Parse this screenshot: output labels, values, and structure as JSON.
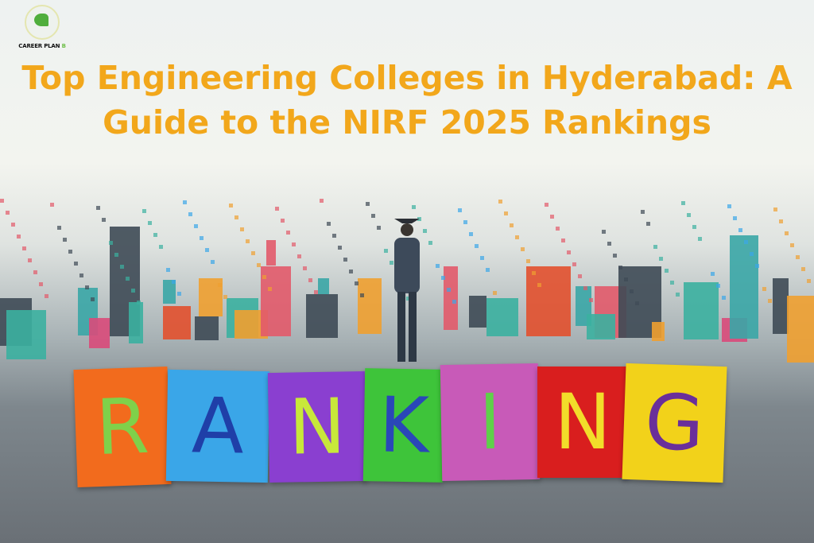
{
  "logo": {
    "brand": "CAREER PLAN",
    "brand_suffix": "B"
  },
  "title": {
    "line1": "Top Engineering Colleges in Hyderabad: A",
    "line2": "Guide to the NIRF 2025 Rankings"
  },
  "colors": {
    "title": "#f2a71b",
    "logo_green": "#4fae3c"
  },
  "tiles": [
    {
      "letter": "R",
      "bg": "#f26b1d",
      "fg": "#7fd14a"
    },
    {
      "letter": "A",
      "bg": "#3aa6e8",
      "fg": "#1f3fa8"
    },
    {
      "letter": "N",
      "bg": "#8a3fd0",
      "fg": "#c8e83a"
    },
    {
      "letter": "K",
      "bg": "#3ec43a",
      "fg": "#2a47b8"
    },
    {
      "letter": "I",
      "bg": "#c85ab8",
      "fg": "#5fd04a"
    },
    {
      "letter": "N",
      "bg": "#d91e1e",
      "fg": "#f2dd2a"
    },
    {
      "letter": "G",
      "bg": "#f2d21a",
      "fg": "#6a2f9a"
    }
  ]
}
